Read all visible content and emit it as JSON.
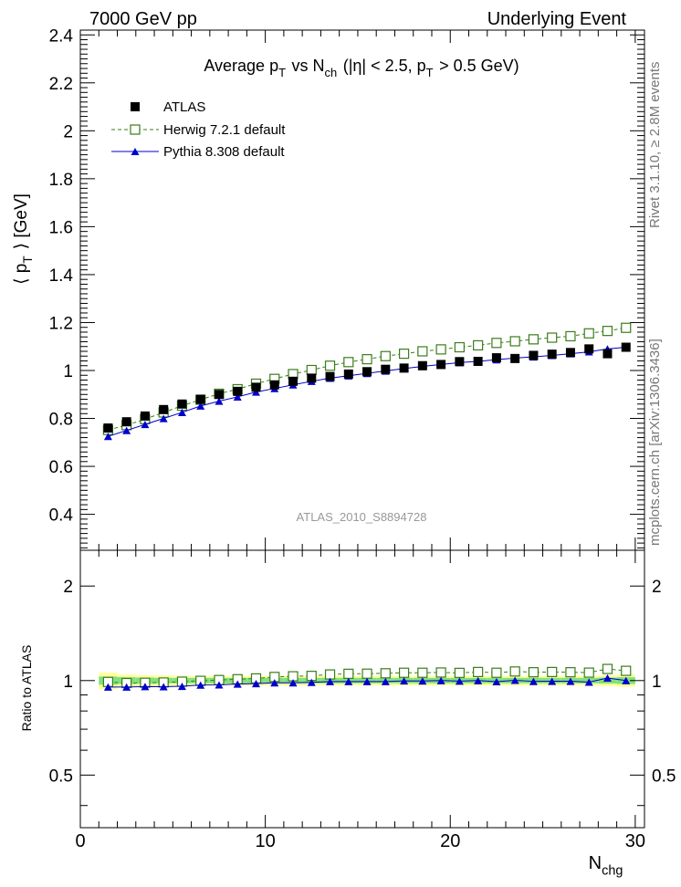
{
  "header": {
    "left": "7000 GeV pp",
    "right": "Underlying Event"
  },
  "side": {
    "rivet": "Rivet 3.1.10, ≥ 2.8M events",
    "mcplots": "mcplots.cern.ch [arXiv:1306.3436]"
  },
  "chart_data": {
    "type": "line",
    "title": "Average p_T vs N_ch (|η| < 2.5, p_T > 0.5 GeV)",
    "analysis": "ATLAS_2010_S8894728",
    "xlabel": "N_chg",
    "ylabel": "⟨ p_T ⟩ [GeV]",
    "ratio_ylabel": "Ratio to ATLAS",
    "xlim": [
      0,
      30.5
    ],
    "ylim": [
      0.25,
      2.42
    ],
    "ratio_ylim": [
      0.34,
      2.6
    ],
    "x_ticks": [
      "0",
      "10",
      "20",
      "30"
    ],
    "y_ticks": [
      "0.4",
      "0.6",
      "0.8",
      "1",
      "1.2",
      "1.4",
      "1.6",
      "1.8",
      "2",
      "2.2",
      "2.4"
    ],
    "ratio_ticks": [
      "0.5",
      "1",
      "2"
    ],
    "legend_position": "top-left",
    "x": [
      1.5,
      2.5,
      3.5,
      4.5,
      5.5,
      6.5,
      7.5,
      8.5,
      9.5,
      10.5,
      11.5,
      12.5,
      13.5,
      14.5,
      15.5,
      16.5,
      17.5,
      18.5,
      19.5,
      20.5,
      21.5,
      22.5,
      23.5,
      24.5,
      25.5,
      26.5,
      27.5,
      28.5,
      29.5
    ],
    "series": [
      {
        "name": "ATLAS",
        "style": "data",
        "color": "#000000",
        "values": [
          0.76,
          0.786,
          0.81,
          0.837,
          0.86,
          0.88,
          0.9,
          0.913,
          0.93,
          0.94,
          0.955,
          0.968,
          0.975,
          0.985,
          0.995,
          1.005,
          1.01,
          1.02,
          1.025,
          1.037,
          1.038,
          1.053,
          1.05,
          1.063,
          1.068,
          1.075,
          1.09,
          1.07,
          1.097
        ]
      },
      {
        "name": "Herwig 7.2.1 default",
        "style": "dashed-open-square",
        "color": "#3a7d1a",
        "values": [
          0.752,
          0.772,
          0.797,
          0.825,
          0.853,
          0.878,
          0.903,
          0.922,
          0.945,
          0.965,
          0.985,
          1.002,
          1.02,
          1.035,
          1.047,
          1.06,
          1.07,
          1.08,
          1.088,
          1.097,
          1.105,
          1.115,
          1.122,
          1.13,
          1.137,
          1.143,
          1.155,
          1.165,
          1.178
        ]
      },
      {
        "name": "Pythia 8.308 default",
        "style": "solid-triangle",
        "color": "#0000cc",
        "values": [
          0.725,
          0.75,
          0.775,
          0.8,
          0.825,
          0.852,
          0.872,
          0.89,
          0.91,
          0.925,
          0.94,
          0.955,
          0.968,
          0.978,
          0.988,
          0.998,
          1.008,
          1.017,
          1.025,
          1.033,
          1.038,
          1.045,
          1.052,
          1.057,
          1.063,
          1.07,
          1.078,
          1.09,
          1.097
        ]
      }
    ],
    "ratio": {
      "band_inner_halfwidth": [
        0.03,
        0.025,
        0.022,
        0.02,
        0.02,
        0.02,
        0.02,
        0.02,
        0.02,
        0.02,
        0.02,
        0.02,
        0.02,
        0.02,
        0.02,
        0.02,
        0.02,
        0.02,
        0.02,
        0.02,
        0.02,
        0.02,
        0.02,
        0.02,
        0.02,
        0.02,
        0.02,
        0.022,
        0.025
      ],
      "band_outer_halfwidth": [
        0.06,
        0.045,
        0.04,
        0.038,
        0.036,
        0.035,
        0.035,
        0.035,
        0.035,
        0.035,
        0.035,
        0.035,
        0.035,
        0.035,
        0.035,
        0.035,
        0.035,
        0.035,
        0.035,
        0.035,
        0.035,
        0.035,
        0.035,
        0.035,
        0.035,
        0.035,
        0.035,
        0.04,
        0.045
      ],
      "herwig": [
        0.99,
        0.982,
        0.984,
        0.986,
        0.992,
        0.998,
        1.004,
        1.01,
        1.016,
        1.027,
        1.032,
        1.035,
        1.046,
        1.051,
        1.052,
        1.055,
        1.059,
        1.059,
        1.061,
        1.058,
        1.065,
        1.059,
        1.069,
        1.063,
        1.065,
        1.063,
        1.06,
        1.089,
        1.074
      ],
      "pythia": [
        0.954,
        0.954,
        0.957,
        0.956,
        0.959,
        0.968,
        0.969,
        0.975,
        0.978,
        0.984,
        0.984,
        0.987,
        0.993,
        0.993,
        0.993,
        0.993,
        0.998,
        0.997,
        1.0,
        0.996,
        1.0,
        0.992,
        1.002,
        0.994,
        0.995,
        0.995,
        0.989,
        1.019,
        1.0
      ]
    },
    "colors": {
      "band_inner": "#7fe07f",
      "band_outer": "#ffff99"
    }
  }
}
